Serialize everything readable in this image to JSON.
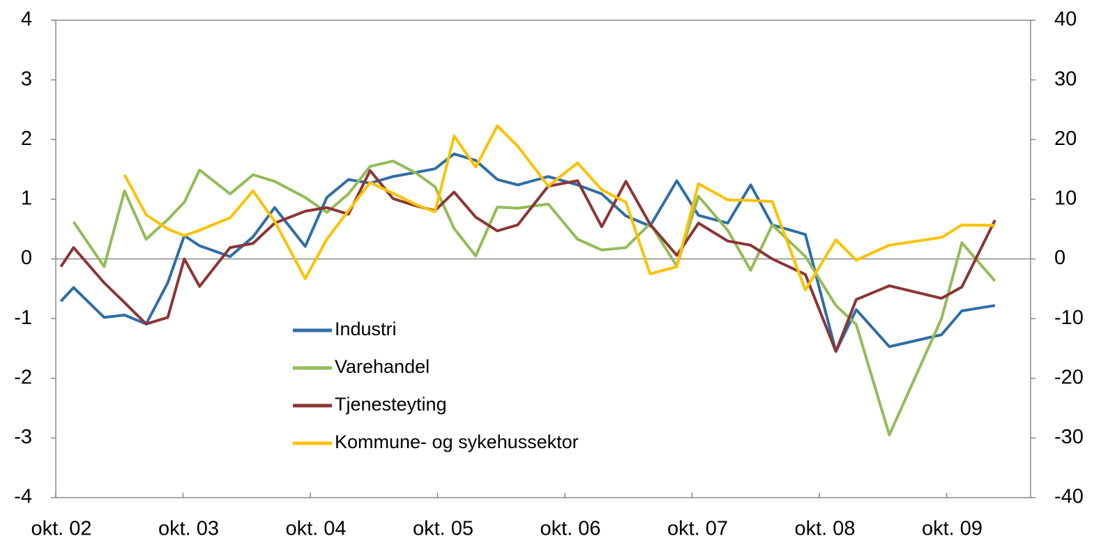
{
  "chart_data": {
    "type": "line",
    "x": [
      2002.79,
      2002.89,
      2003.13,
      2003.29,
      2003.46,
      2003.63,
      2003.76,
      2003.88,
      2004.12,
      2004.3,
      2004.47,
      2004.71,
      2004.88,
      2005.05,
      2005.22,
      2005.4,
      2005.58,
      2005.73,
      2005.88,
      2006.05,
      2006.22,
      2006.38,
      2006.62,
      2006.85,
      2007.04,
      2007.23,
      2007.42,
      2007.63,
      2007.8,
      2008.03,
      2008.21,
      2008.38,
      2008.64,
      2008.88,
      2009.04,
      2009.3,
      2009.71,
      2009.87,
      2010.13
    ],
    "series": [
      {
        "name": "Industri",
        "color": "#2f6ea6",
        "values": [
          -0.71,
          -0.48,
          -0.98,
          -0.94,
          -1.09,
          -0.4,
          0.39,
          0.22,
          0.04,
          0.37,
          0.86,
          0.21,
          1.03,
          1.33,
          1.27,
          1.38,
          1.45,
          1.51,
          1.76,
          1.65,
          1.33,
          1.24,
          1.38,
          1.24,
          1.09,
          0.72,
          0.55,
          1.31,
          0.73,
          0.6,
          1.24,
          0.57,
          0.41,
          -1.55,
          -0.85,
          -1.47,
          -1.27,
          -0.87,
          -0.78
        ]
      },
      {
        "name": "Varehandel",
        "color": "#93bc57",
        "values": [
          null,
          0.62,
          -0.13,
          1.14,
          0.33,
          0.66,
          0.95,
          1.49,
          1.09,
          1.41,
          1.3,
          1.03,
          0.78,
          1.09,
          1.55,
          1.64,
          1.44,
          1.21,
          0.51,
          0.05,
          0.87,
          0.85,
          0.92,
          0.33,
          0.15,
          0.19,
          0.59,
          -0.12,
          1.05,
          0.48,
          -0.19,
          0.57,
          0.04,
          -0.78,
          -1.1,
          -2.95,
          -1.0,
          0.27,
          -0.37
        ]
      },
      {
        "name": "Tjenesteyting",
        "color": "#8b3535",
        "values": [
          -0.13,
          0.19,
          -0.4,
          -0.73,
          -1.09,
          -0.98,
          0.0,
          -0.46,
          0.19,
          0.26,
          0.6,
          0.8,
          0.86,
          0.75,
          1.48,
          1.01,
          0.89,
          0.81,
          1.12,
          0.7,
          0.47,
          0.57,
          1.22,
          1.31,
          0.54,
          1.3,
          0.58,
          0.06,
          0.6,
          0.3,
          0.23,
          0.0,
          -0.26,
          -1.55,
          -0.68,
          -0.45,
          -0.66,
          -0.47,
          0.65
        ]
      },
      {
        "name": "Kommune- og sykehussektor",
        "color": "#fdc100",
        "axis": "y2",
        "values": [
          null,
          null,
          null,
          14.1,
          7.4,
          5.0,
          3.9,
          4.8,
          6.9,
          11.4,
          6.3,
          -3.3,
          3.3,
          8.1,
          12.8,
          11.0,
          9.1,
          7.9,
          20.6,
          15.4,
          22.3,
          18.9,
          12.2,
          16.1,
          11.6,
          9.5,
          -2.5,
          -1.3,
          12.6,
          9.9,
          9.8,
          9.6,
          -5.2,
          3.2,
          -0.2,
          2.3,
          3.6,
          5.7,
          5.6
        ]
      }
    ],
    "xlim": [
      2002.75,
      2010.41
    ],
    "xticks": [
      {
        "value": 2002.75,
        "label": "okt. 02"
      },
      {
        "value": 2003.75,
        "label": "okt. 03"
      },
      {
        "value": 2004.75,
        "label": "okt. 04"
      },
      {
        "value": 2005.75,
        "label": "okt. 05"
      },
      {
        "value": 2006.75,
        "label": "okt. 06"
      },
      {
        "value": 2007.75,
        "label": "okt. 07"
      },
      {
        "value": 2008.75,
        "label": "okt. 08"
      },
      {
        "value": 2009.75,
        "label": "okt. 09"
      }
    ],
    "ylim": [
      -4,
      4
    ],
    "yticks": [
      -4,
      -3,
      -2,
      -1,
      0,
      1,
      2,
      3,
      4
    ],
    "y2lim": [
      -40,
      40
    ],
    "y2ticks": [
      -40,
      -30,
      -20,
      -10,
      0,
      10,
      20,
      30,
      40
    ],
    "legend": "center"
  }
}
